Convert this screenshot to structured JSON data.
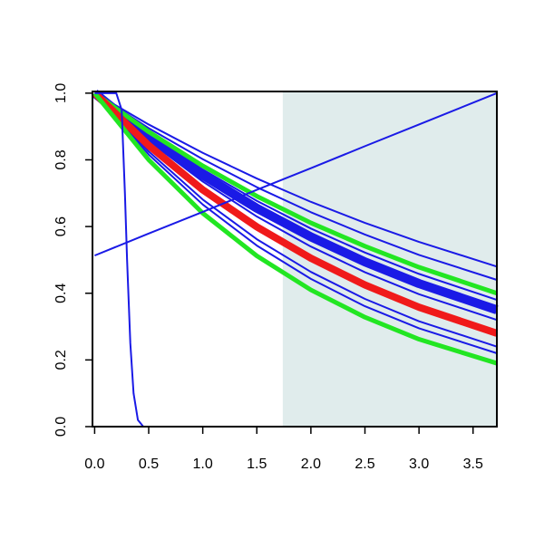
{
  "chart_data": {
    "type": "line",
    "xlim": [
      -0.02,
      3.72
    ],
    "ylim": [
      0,
      1.005
    ],
    "xticks": [
      {
        "value": 0,
        "label": "0.0"
      },
      0.5,
      {
        "value": 1,
        "label": "1.0"
      },
      1.5,
      {
        "value": 2,
        "label": "2.0"
      },
      2.5,
      {
        "value": 3,
        "label": "3.0"
      },
      3.5
    ],
    "yticks": [
      {
        "value": 0,
        "label": "0.0"
      },
      {
        "value": 0.2,
        "label": "0.2"
      },
      {
        "value": 0.4,
        "label": "0.4"
      },
      {
        "value": 0.6,
        "label": "0.6"
      },
      {
        "value": 0.8,
        "label": "0.8"
      },
      {
        "value": 1,
        "label": "1.0"
      }
    ],
    "shaded_region": {
      "xlim": [
        1.74,
        3.72
      ],
      "color": "#e0ecec"
    },
    "x": [
      0,
      0.5,
      1,
      1.5,
      2,
      2.5,
      3,
      3.72
    ],
    "series": [
      {
        "color": "#1a1ae6",
        "width": 2,
        "values": [
          1,
          0.906,
          0.821,
          0.744,
          0.674,
          0.611,
          0.554,
          0.48
        ]
      },
      {
        "color": "#1a1ae6",
        "width": 2,
        "values": [
          1,
          0.895,
          0.802,
          0.718,
          0.643,
          0.576,
          0.515,
          0.44
        ]
      },
      {
        "color": "#1a1ae6",
        "width": 2,
        "values": [
          1,
          0.878,
          0.771,
          0.677,
          0.594,
          0.522,
          0.458,
          0.38
        ]
      },
      {
        "color": "#1a1ae6",
        "width": 10,
        "values": [
          1,
          0.868,
          0.754,
          0.655,
          0.569,
          0.494,
          0.429,
          0.35
        ]
      },
      {
        "color": "#1a1ae6",
        "width": 2,
        "values": [
          1,
          0.857,
          0.735,
          0.63,
          0.54,
          0.463,
          0.397,
          0.32
        ]
      },
      {
        "color": "#22e622",
        "width": 5,
        "values": [
          1,
          0.884,
          0.782,
          0.691,
          0.611,
          0.541,
          0.478,
          0.4
        ]
      },
      {
        "color": "#1a1ae6",
        "width": 2,
        "values": [
          1,
          0.825,
          0.681,
          0.562,
          0.464,
          0.383,
          0.316,
          0.24
        ]
      },
      {
        "color": "#1a1ae6",
        "width": 2,
        "values": [
          1,
          0.816,
          0.666,
          0.543,
          0.443,
          0.361,
          0.295,
          0.22
        ]
      },
      {
        "color": "#f01a1a",
        "width": 8,
        "values": [
          1,
          0.843,
          0.71,
          0.599,
          0.505,
          0.425,
          0.358,
          0.28
        ]
      },
      {
        "color": "#22e622",
        "width": 5,
        "values": [
          1,
          0.8,
          0.64,
          0.512,
          0.41,
          0.328,
          0.262,
          0.19
        ]
      },
      {
        "color": "#1a1ae6",
        "width": 2,
        "values": [
          0.513,
          0.579,
          0.644,
          0.71,
          0.775,
          0.841,
          0.906,
          1.0
        ]
      },
      {
        "color": "#1a1ae6",
        "width": 2,
        "x": [
          0,
          0.2,
          0.25,
          0.28,
          0.3,
          0.33,
          0.36,
          0.4,
          0.45,
          3.72
        ],
        "values": [
          1,
          1,
          0.95,
          0.7,
          0.5,
          0.25,
          0.1,
          0.02,
          0,
          0
        ]
      }
    ]
  }
}
